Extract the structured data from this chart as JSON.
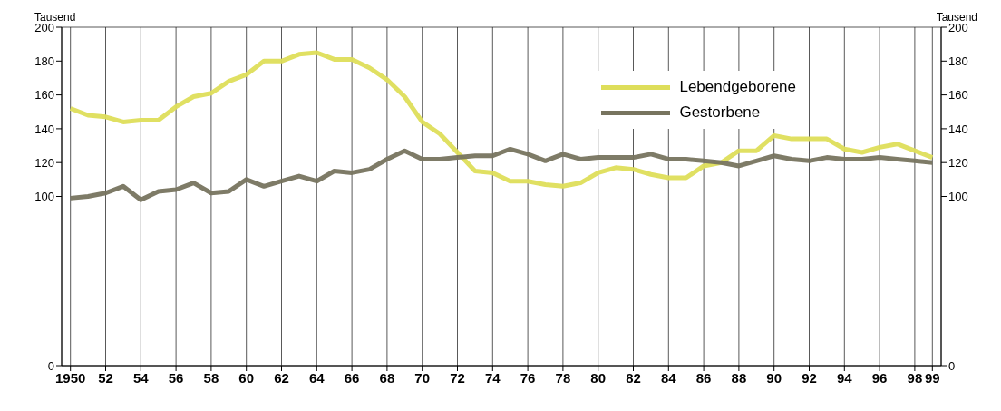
{
  "chart_data": {
    "type": "line",
    "ylabel": "Tausend",
    "y2label": "Tausend",
    "x": [
      1950,
      1951,
      1952,
      1953,
      1954,
      1955,
      1956,
      1957,
      1958,
      1959,
      1960,
      1961,
      1962,
      1963,
      1964,
      1965,
      1966,
      1967,
      1968,
      1969,
      1970,
      1971,
      1972,
      1973,
      1974,
      1975,
      1976,
      1977,
      1978,
      1979,
      1980,
      1981,
      1982,
      1983,
      1984,
      1985,
      1986,
      1987,
      1988,
      1989,
      1990,
      1991,
      1992,
      1993,
      1994,
      1995,
      1996,
      1997,
      1998,
      1999
    ],
    "series": [
      {
        "name": "Lebendgeborene",
        "color": "#dede5a",
        "values": [
          152,
          148,
          147,
          144,
          145,
          145,
          153,
          159,
          161,
          168,
          172,
          180,
          180,
          184,
          185,
          181,
          181,
          176,
          169,
          159,
          144,
          137,
          126,
          115,
          114,
          109,
          109,
          107,
          106,
          108,
          114,
          117,
          116,
          113,
          111,
          111,
          118,
          120,
          127,
          127,
          136,
          134,
          134,
          134,
          128,
          126,
          129,
          131,
          127,
          123
        ]
      },
      {
        "name": "Gestorbene",
        "color": "#77745f",
        "values": [
          99,
          100,
          102,
          106,
          98,
          103,
          104,
          108,
          102,
          103,
          110,
          106,
          109,
          112,
          109,
          115,
          114,
          116,
          122,
          127,
          122,
          122,
          123,
          124,
          124,
          128,
          125,
          121,
          125,
          122,
          123,
          123,
          123,
          125,
          122,
          122,
          121,
          120,
          118,
          121,
          124,
          122,
          121,
          123,
          122,
          122,
          123,
          122,
          121,
          120
        ]
      }
    ],
    "xlim": [
      1949.5,
      1999.5
    ],
    "xticks": [
      {
        "value": 1950,
        "label": "1950"
      },
      {
        "value": 1952,
        "label": "52"
      },
      {
        "value": 1954,
        "label": "54"
      },
      {
        "value": 1956,
        "label": "56"
      },
      {
        "value": 1958,
        "label": "58"
      },
      {
        "value": 1960,
        "label": "60"
      },
      {
        "value": 1962,
        "label": "62"
      },
      {
        "value": 1964,
        "label": "64"
      },
      {
        "value": 1966,
        "label": "66"
      },
      {
        "value": 1968,
        "label": "68"
      },
      {
        "value": 1970,
        "label": "70"
      },
      {
        "value": 1972,
        "label": "72"
      },
      {
        "value": 1974,
        "label": "74"
      },
      {
        "value": 1976,
        "label": "76"
      },
      {
        "value": 1978,
        "label": "78"
      },
      {
        "value": 1980,
        "label": "80"
      },
      {
        "value": 1982,
        "label": "82"
      },
      {
        "value": 1984,
        "label": "84"
      },
      {
        "value": 1986,
        "label": "86"
      },
      {
        "value": 1988,
        "label": "88"
      },
      {
        "value": 1990,
        "label": "90"
      },
      {
        "value": 1992,
        "label": "92"
      },
      {
        "value": 1994,
        "label": "94"
      },
      {
        "value": 1996,
        "label": "96"
      },
      {
        "value": 1998,
        "label": "98"
      },
      {
        "value": 1999,
        "label": "99"
      }
    ],
    "ylim": [
      0,
      200
    ],
    "yticks": [
      0,
      100,
      120,
      140,
      160,
      180,
      200
    ],
    "y2lim": [
      0,
      200
    ],
    "y2ticks": [
      0,
      100,
      120,
      140,
      160,
      180,
      200
    ],
    "grid": true,
    "legend": "top right",
    "marker": "none",
    "line_style": "solid"
  }
}
